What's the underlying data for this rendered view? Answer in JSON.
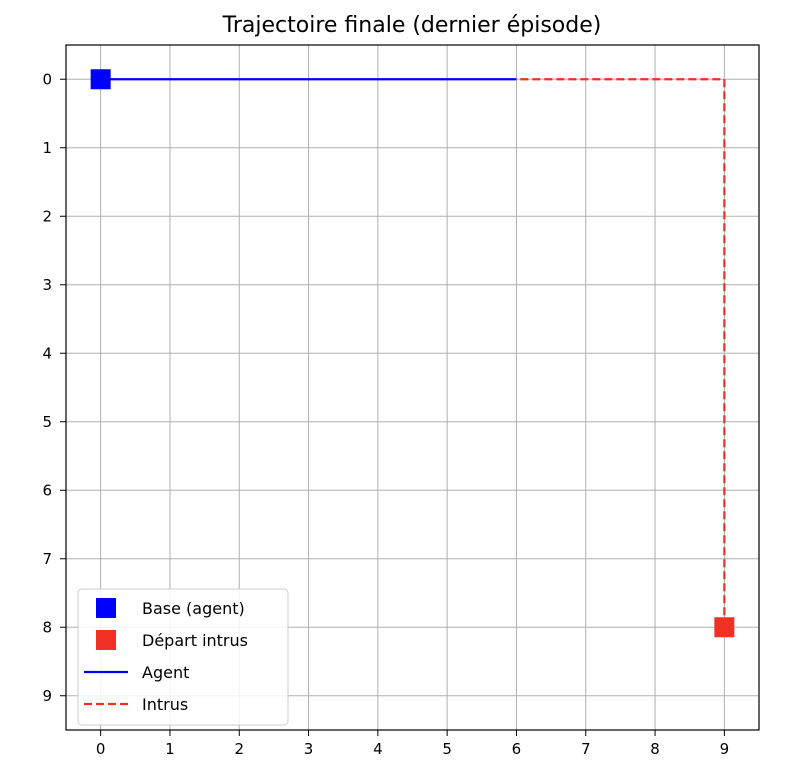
{
  "chart_data": {
    "type": "line",
    "title": "Trajectoire finale (dernier épisode)",
    "xlabel": "",
    "ylabel": "",
    "xlim": [
      -0.5,
      9.5
    ],
    "ylim": [
      9.5,
      -0.5
    ],
    "y_inverted": true,
    "x_ticks": [
      "0",
      "1",
      "2",
      "3",
      "4",
      "5",
      "6",
      "7",
      "8",
      "9"
    ],
    "y_ticks": [
      "0",
      "1",
      "2",
      "3",
      "4",
      "5",
      "6",
      "7",
      "8",
      "9"
    ],
    "grid": true,
    "legend_position": "bottom-left",
    "markers": [
      {
        "name": "Base (agent)",
        "x": 0,
        "y": 0,
        "color": "#0000ff",
        "marker": "square"
      },
      {
        "name": "Départ intrus",
        "x": 9,
        "y": 8,
        "color": "#ee3124",
        "marker": "square"
      }
    ],
    "series": [
      {
        "name": "Agent",
        "color": "#0000ff",
        "style": "solid",
        "points": [
          [
            0,
            0
          ],
          [
            1,
            0
          ],
          [
            2,
            0
          ],
          [
            3,
            0
          ],
          [
            4,
            0
          ],
          [
            5,
            0
          ],
          [
            6,
            0
          ]
        ]
      },
      {
        "name": "Intrus",
        "color": "#ee3124",
        "style": "dashed",
        "points": [
          [
            9,
            8
          ],
          [
            9,
            7
          ],
          [
            9,
            6
          ],
          [
            9,
            5
          ],
          [
            9,
            4
          ],
          [
            9,
            3
          ],
          [
            9,
            2
          ],
          [
            9,
            1
          ],
          [
            9,
            0
          ],
          [
            8,
            0
          ],
          [
            7,
            0
          ],
          [
            6,
            0
          ]
        ]
      }
    ],
    "legend": [
      {
        "label": "Base (agent)",
        "kind": "marker",
        "color": "#0000ff"
      },
      {
        "label": "Départ intrus",
        "kind": "marker",
        "color": "#ee3124"
      },
      {
        "label": "Agent",
        "kind": "line",
        "color": "#0000ff",
        "style": "solid"
      },
      {
        "label": "Intrus",
        "kind": "line",
        "color": "#ee3124",
        "style": "dashed"
      }
    ]
  }
}
